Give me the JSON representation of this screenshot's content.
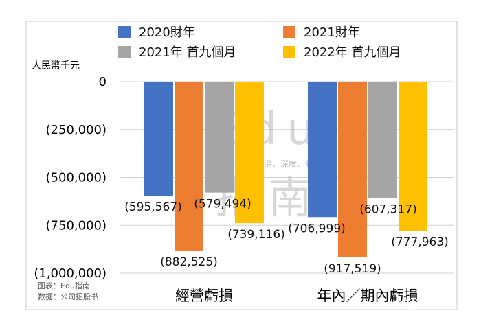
{
  "chart_data": {
    "type": "bar",
    "unit_label": "人民幣千元",
    "categories": [
      "經營虧損",
      "年內／期內虧損"
    ],
    "series": [
      {
        "name": "2020財年",
        "color": "#4472C4",
        "values": [
          -595567,
          -706999
        ],
        "labels": [
          "(595,567)",
          "(706,999)"
        ]
      },
      {
        "name": "2021財年",
        "color": "#ED7D31",
        "values": [
          -882525,
          -917519
        ],
        "labels": [
          "(882,525)",
          "(917,519)"
        ]
      },
      {
        "name": "2021年 首九個月",
        "color": "#A5A5A5",
        "values": [
          -579494,
          -607317
        ],
        "labels": [
          "(579,494)",
          "(607,317)"
        ]
      },
      {
        "name": "2022年 首九個月",
        "color": "#FFC000",
        "values": [
          -739116,
          -777963
        ],
        "labels": [
          "(739,116)",
          "(777,963)"
        ]
      }
    ],
    "ylim": [
      -1000000,
      0
    ],
    "yticks": [
      0,
      -250000,
      -500000,
      -750000,
      -1000000
    ],
    "ytick_labels": [
      "0",
      "(250,000)",
      "(500,000)",
      "(750,000)",
      "(1,000,000)"
    ],
    "grid": true,
    "legend_position": "top"
  },
  "notes": {
    "source_line1": "图表：Edu指南",
    "source_line2": "数据：公司招股书"
  },
  "watermark": {
    "big_top": "Edu",
    "tagline": "教育行业，前沿、深度、独家",
    "big_bottom": "指南"
  },
  "credit": {
    "icon": "wechat-icon",
    "text": "Edu指南"
  }
}
